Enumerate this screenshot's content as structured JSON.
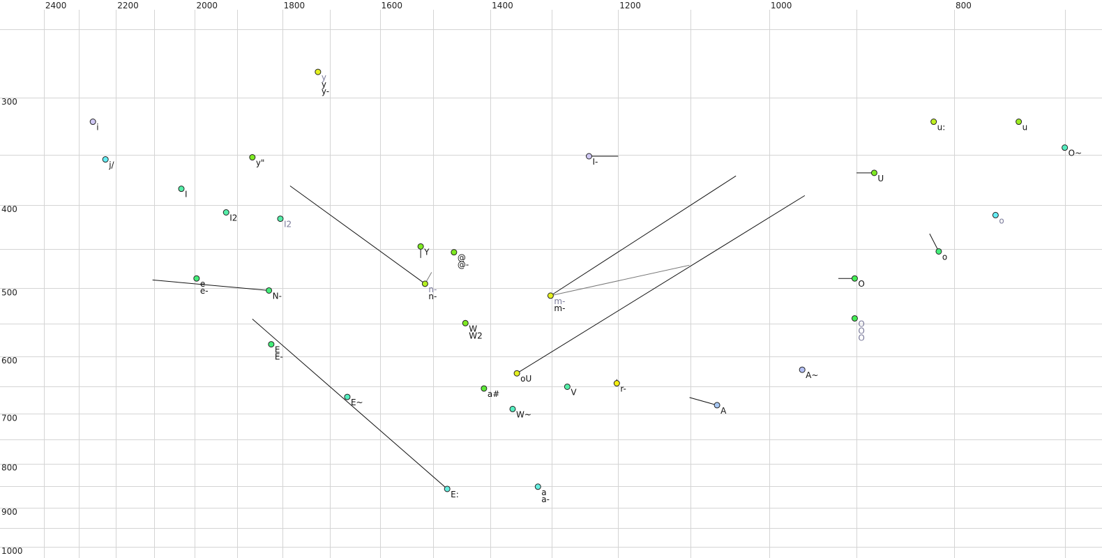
{
  "chart_data": {
    "type": "scatter",
    "title": "",
    "xlabel": "",
    "ylabel": "",
    "x_axis": {
      "scale": "log",
      "reversed": true,
      "position": "top",
      "xlim": [
        700,
        2450
      ],
      "grid_step": 100,
      "ticks": [
        2400,
        2200,
        2000,
        1800,
        1600,
        1400,
        1200,
        1000,
        800
      ]
    },
    "y_axis": {
      "scale": "log",
      "reversed": true,
      "position": "left",
      "ylim": [
        240,
        1020
      ],
      "grid_step": 50,
      "ticks": [
        300,
        400,
        500,
        600,
        700,
        800,
        900,
        1000
      ]
    },
    "grid": true,
    "points": [
      {
        "x": 1724,
        "y": 280,
        "color": "#e4f020",
        "labels": [
          {
            "t": "y",
            "gray": true
          },
          {
            "t": "y"
          },
          {
            "t": "y-"
          }
        ]
      },
      {
        "x": 2262,
        "y": 320,
        "color": "#cfc8f4",
        "labels": [
          {
            "t": "i"
          }
        ]
      },
      {
        "x": 2228,
        "y": 354,
        "color": "#66eef4",
        "labels": [
          {
            "t": "j/"
          }
        ]
      },
      {
        "x": 1866,
        "y": 352,
        "color": "#7eea22",
        "labels": [
          {
            "t": "y\""
          }
        ]
      },
      {
        "x": 2033,
        "y": 383,
        "color": "#55eea8",
        "labels": [
          {
            "t": "I"
          }
        ]
      },
      {
        "x": 1926,
        "y": 408,
        "color": "#55eea8",
        "labels": [
          {
            "t": "I2"
          }
        ]
      },
      {
        "x": 1804,
        "y": 415,
        "color": "#55eea8",
        "labels": [
          {
            "t": "I2",
            "gray": true
          }
        ]
      },
      {
        "x": 1996,
        "y": 487,
        "color": "#44ee7a",
        "labels": [
          {
            "t": "e"
          },
          {
            "t": "e-"
          }
        ]
      },
      {
        "x": 1829,
        "y": 503,
        "color": "#44ee7a",
        "labels": [
          {
            "t": "N-"
          }
        ]
      },
      {
        "x": 1523,
        "y": 447,
        "color": "#7eea22",
        "labels": [
          {
            "t": "Y"
          }
        ]
      },
      {
        "x": 1463,
        "y": 454,
        "color": "#7eea22",
        "labels": [
          {
            "t": "@"
          },
          {
            "t": "@-"
          }
        ]
      },
      {
        "x": 1515,
        "y": 494,
        "color": "#b4f020",
        "labels": [
          {
            "t": "n-",
            "gray": true
          },
          {
            "t": "n-"
          }
        ]
      },
      {
        "x": 1443,
        "y": 549,
        "color": "#7eea22",
        "labels": [
          {
            "t": "W"
          },
          {
            "t": "W2"
          }
        ]
      },
      {
        "x": 1302,
        "y": 510,
        "color": "#e4f020",
        "labels": [
          {
            "t": "m-",
            "gray": true
          },
          {
            "t": "m-"
          }
        ]
      },
      {
        "x": 1824,
        "y": 581,
        "color": "#44ee7a",
        "labels": [
          {
            "t": "E"
          },
          {
            "t": "E-"
          }
        ]
      },
      {
        "x": 1664,
        "y": 669,
        "color": "#55eec0",
        "labels": [
          {
            "t": "E~"
          }
        ]
      },
      {
        "x": 1475,
        "y": 856,
        "color": "#66eee0",
        "labels": [
          {
            "t": "E:"
          }
        ]
      },
      {
        "x": 1322,
        "y": 851,
        "color": "#66eee0",
        "labels": [
          {
            "t": "a"
          },
          {
            "t": "a-"
          }
        ]
      },
      {
        "x": 1411,
        "y": 654,
        "color": "#5ce838",
        "labels": [
          {
            "t": "a#"
          }
        ]
      },
      {
        "x": 1356,
        "y": 628,
        "color": "#e4f020",
        "labels": [
          {
            "t": "oU"
          }
        ]
      },
      {
        "x": 1363,
        "y": 691,
        "color": "#55eec0",
        "labels": [
          {
            "t": "W~"
          }
        ]
      },
      {
        "x": 1276,
        "y": 651,
        "color": "#55eea8",
        "labels": [
          {
            "t": "V"
          }
        ]
      },
      {
        "x": 1202,
        "y": 645,
        "color": "#f4ee10",
        "labels": [
          {
            "t": "r-"
          }
        ]
      },
      {
        "x": 1243,
        "y": 351,
        "color": "#cfc8f4",
        "labels": [
          {
            "t": "I-"
          }
        ]
      },
      {
        "x": 1065,
        "y": 684,
        "color": "#a8c8f4",
        "labels": [
          {
            "t": "A"
          }
        ]
      },
      {
        "x": 961,
        "y": 622,
        "color": "#b4c0f4",
        "labels": [
          {
            "t": "A~"
          }
        ]
      },
      {
        "x": 881,
        "y": 367,
        "color": "#7eea22",
        "labels": [
          {
            "t": "U"
          }
        ]
      },
      {
        "x": 902,
        "y": 487,
        "color": "#44ee55",
        "labels": [
          {
            "t": "O"
          }
        ]
      },
      {
        "x": 902,
        "y": 542,
        "color": "#44ee55",
        "labels": [
          {
            "t": "O",
            "gray": true
          },
          {
            "t": "O",
            "gray": true
          },
          {
            "t": "O",
            "gray": true
          }
        ]
      },
      {
        "x": 815,
        "y": 453,
        "color": "#44ee7a",
        "labels": [
          {
            "t": "o"
          }
        ]
      },
      {
        "x": 761,
        "y": 411,
        "color": "#66eef4",
        "labels": [
          {
            "t": "o",
            "gray": true
          }
        ]
      },
      {
        "x": 820,
        "y": 320,
        "color": "#c0f020",
        "labels": [
          {
            "t": "u:"
          }
        ]
      },
      {
        "x": 740,
        "y": 320,
        "color": "#9cec20",
        "labels": [
          {
            "t": "u"
          }
        ]
      },
      {
        "x": 700,
        "y": 343,
        "color": "#55eec0",
        "labels": [
          {
            "t": "O~"
          }
        ]
      }
    ],
    "trajectories": [
      {
        "from": [
          1783,
          380
        ],
        "to": [
          1515,
          494
        ]
      },
      {
        "from": [
          2105,
          489
        ],
        "to": [
          1829,
          503
        ]
      },
      {
        "from": [
          1866,
          543
        ],
        "to": [
          1475,
          856
        ]
      },
      {
        "from": [
          1302,
          510
        ],
        "to": [
          1041,
          370
        ]
      },
      {
        "from": [
          1356,
          628
        ],
        "to": [
          958,
          390
        ]
      },
      {
        "from": [
          1302,
          510
        ],
        "to": [
          1101,
          470
        ],
        "thin": true
      },
      {
        "from": [
          1243,
          351
        ],
        "to": [
          1200,
          351
        ]
      },
      {
        "from": [
          900,
          367
        ],
        "to": [
          881,
          367
        ]
      },
      {
        "from": [
          920,
          487
        ],
        "to": [
          902,
          487
        ]
      },
      {
        "from": [
          824,
          432
        ],
        "to": [
          815,
          453
        ]
      },
      {
        "from": [
          1101,
          670
        ],
        "to": [
          1065,
          684
        ]
      },
      {
        "from": [
          1523,
          447
        ],
        "to": [
          1523,
          461
        ]
      },
      {
        "from": [
          1515,
          494
        ],
        "to": [
          1503,
          479
        ],
        "thin": true
      },
      {
        "from": [
          1202,
          645
        ],
        "to": [
          1202,
          638
        ]
      }
    ]
  }
}
